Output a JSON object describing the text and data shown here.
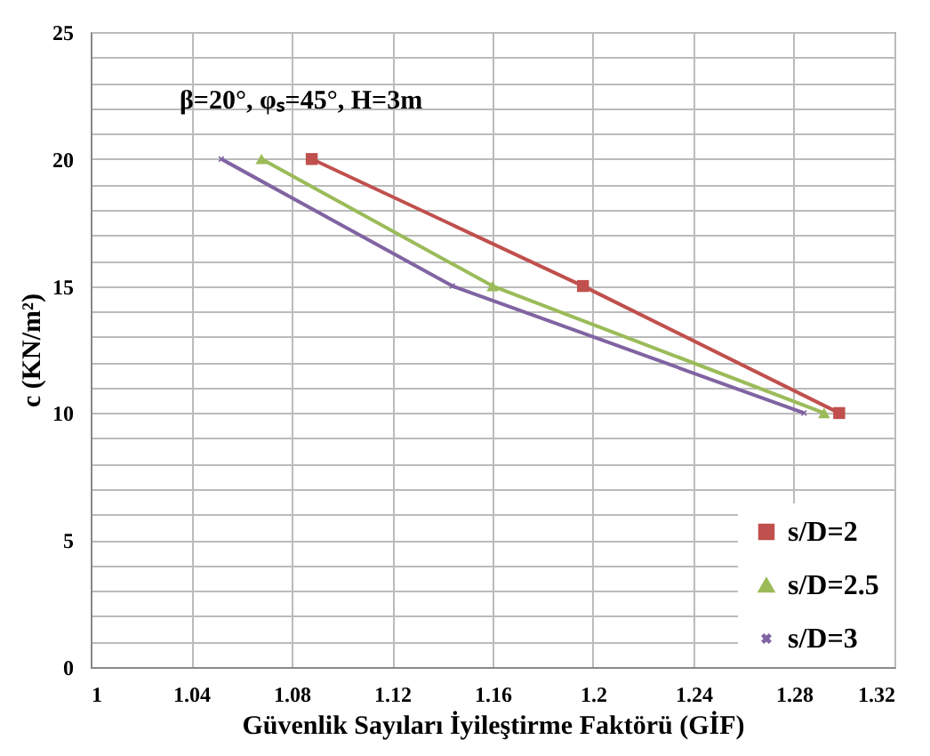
{
  "chart_data": {
    "type": "line",
    "xlabel": "Güvenlik Sayıları İyileştirme Faktörü (GİF)",
    "ylabel": "c (KN/m²)",
    "annotations": [
      "β=20°, φₛ=45°, H=3m"
    ],
    "series": [
      {
        "name": "s/D=2",
        "color": "#c0504d",
        "marker": "square",
        "x": [
          1.088,
          1.196,
          1.298
        ],
        "values": [
          20,
          15,
          10
        ]
      },
      {
        "name": "s/D=2.5",
        "color": "#9bbb59",
        "marker": "triangle",
        "x": [
          1.068,
          1.16,
          1.292
        ],
        "values": [
          20,
          15,
          10
        ]
      },
      {
        "name": "s/D=3",
        "color": "#8064a2",
        "marker": "cross",
        "x": [
          1.052,
          1.144,
          1.284
        ],
        "values": [
          20,
          15,
          10
        ]
      }
    ],
    "xlim": [
      1,
      1.32
    ],
    "xticks": [
      1,
      1.04,
      1.08,
      1.12,
      1.16,
      1.2,
      1.24,
      1.28,
      1.32
    ],
    "ylim": [
      0,
      25
    ],
    "yticks": [
      0,
      {
        "value": 1,
        "label": null
      },
      {
        "value": 2,
        "label": null
      },
      {
        "value": 3,
        "label": null
      },
      {
        "value": 4,
        "label": null
      },
      5,
      {
        "value": 6,
        "label": null
      },
      {
        "value": 7,
        "label": null
      },
      {
        "value": 8,
        "label": null
      },
      {
        "value": 9,
        "label": null
      },
      10,
      {
        "value": 11,
        "label": null
      },
      {
        "value": 12,
        "label": null
      },
      {
        "value": 13,
        "label": null
      },
      {
        "value": 14,
        "label": null
      },
      15,
      {
        "value": 16,
        "label": null
      },
      {
        "value": 17,
        "label": null
      },
      {
        "value": 18,
        "label": null
      },
      {
        "value": 19,
        "label": null
      },
      20,
      {
        "value": 21,
        "label": null
      },
      {
        "value": 22,
        "label": null
      },
      {
        "value": 23,
        "label": null
      },
      {
        "value": 24,
        "label": null
      },
      25
    ],
    "grid": true,
    "legend": "bottom right",
    "line_style": "solid"
  }
}
